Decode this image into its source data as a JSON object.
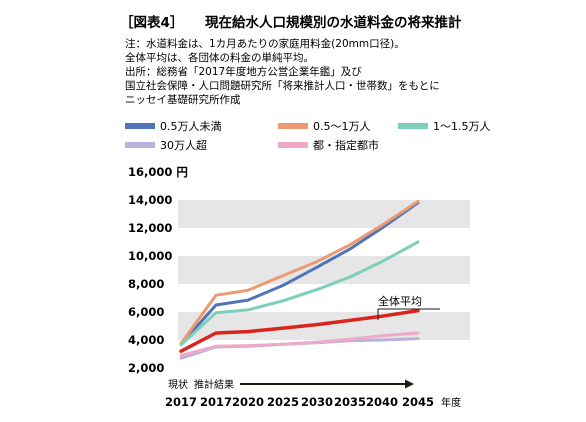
{
  "figure_label": "［図表4］",
  "title": "現在給水人口規模別の水道料金の将来推計",
  "notes": [
    "注：水道料金は、1カ月あたりの家庭用料金(20mm口径)。",
    "全体平均は、各団体の料金の単純平均。",
    "出所：総務省「2017年度地方公営企業年鑑」及び",
    "国立社会保障・人口問題研究所「将来推計人口・世帯数」をもとに",
    "ニッセイ基礎研究所作成"
  ],
  "chart_data": {
    "type": "line",
    "x": [
      "2017",
      "2017",
      "2020",
      "2025",
      "2030",
      "2035",
      "2040",
      "2045"
    ],
    "x_unit": "年度",
    "y_unit": "円",
    "ylim": [
      2000,
      16000
    ],
    "yticks": [
      "2,000",
      "4,000",
      "6,000",
      "8,000",
      "10,000",
      "12,000",
      "14,000",
      "16,000"
    ],
    "grid": "alternating horizontal bands",
    "legend_position": "top",
    "arrow_labels": [
      "現状",
      "推計結果"
    ],
    "series": [
      {
        "name": "0.5万人未満",
        "color": "#4f74b9",
        "values": [
          3700,
          6500,
          6850,
          7900,
          9200,
          10500,
          12000,
          13800
        ]
      },
      {
        "name": "0.5〜1万人",
        "color": "#ec9a73",
        "values": [
          3750,
          7200,
          7550,
          8600,
          9600,
          10800,
          12200,
          13900
        ]
      },
      {
        "name": "1〜1.5万人",
        "color": "#7dcfbc",
        "values": [
          3650,
          5950,
          6150,
          6800,
          7600,
          8500,
          9600,
          11000
        ]
      },
      {
        "name": "30万人超",
        "color": "#b9b2da",
        "values": [
          2700,
          3500,
          3550,
          3700,
          3800,
          3950,
          4000,
          4100
        ]
      },
      {
        "name": "都・指定都市",
        "color": "#eea9c8",
        "values": [
          2900,
          3550,
          3600,
          3700,
          3850,
          4050,
          4300,
          4500
        ]
      },
      {
        "name": "全体平均",
        "color": "#d9261c",
        "values": [
          3200,
          4500,
          4600,
          4850,
          5100,
          5400,
          5700,
          6100
        ]
      }
    ]
  }
}
